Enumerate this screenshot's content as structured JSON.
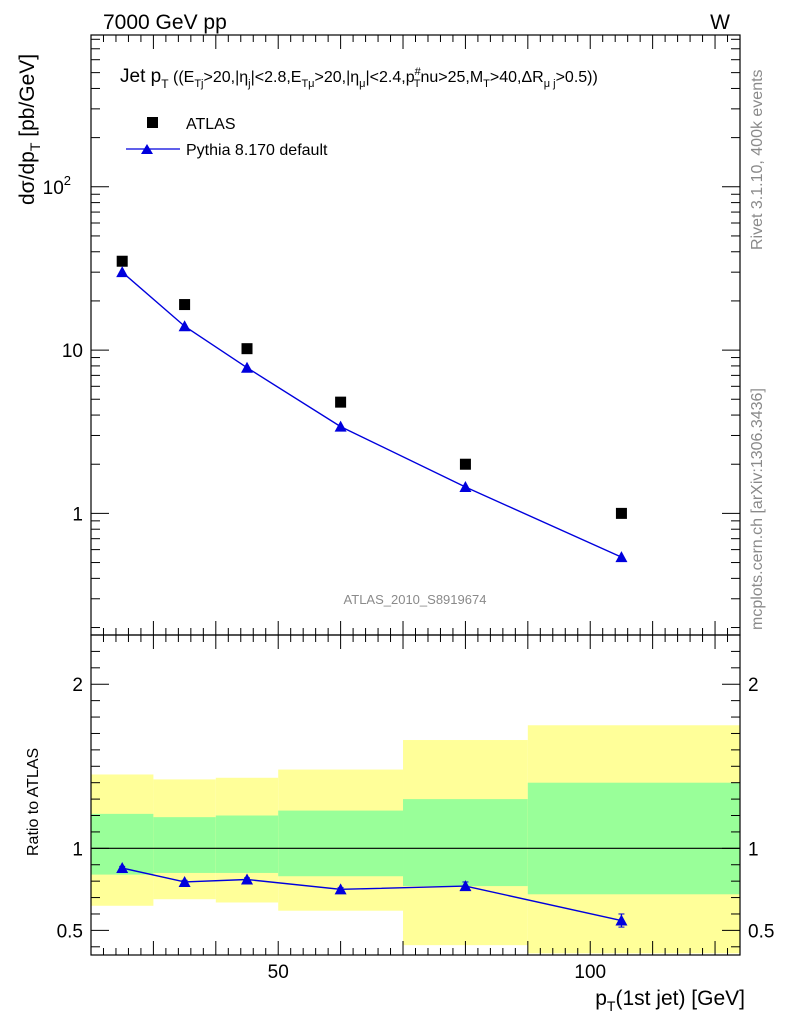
{
  "header": {
    "left": "7000 GeV pp",
    "right": "W"
  },
  "side_labels": {
    "rivet": "Rivet 3.1.10,  400k events",
    "mcplots": "mcplots.cern.ch [arXiv:1306.3436]"
  },
  "chart_data": [
    {
      "type": "scatter",
      "scale": "log",
      "title": "Jet pT ((ETj>20,|ηj|<2.8,ETμ>20,|ημ|<2.4,pT#nu>25,MT>40,ΔRμj>0.5))",
      "ylabel": "dσ/dpT [pb/GeV]",
      "xlim": [
        20,
        124
      ],
      "ylim": [
        0.18,
        850
      ],
      "y_ticks": [
        "1",
        "10",
        "10^2"
      ],
      "watermark": "ATLAS_2010_S8919674",
      "legend": {
        "position": "top-left",
        "entries": [
          "ATLAS",
          "Pythia 8.170 default"
        ]
      },
      "series": [
        {
          "name": "ATLAS",
          "marker": "square",
          "color": "#000000",
          "x": [
            25,
            35,
            45,
            60,
            80,
            105
          ],
          "values": [
            35,
            19,
            10.2,
            4.8,
            2.0,
            1.0
          ]
        },
        {
          "name": "Pythia 8.170 default",
          "marker": "triangle",
          "color": "#0000dd",
          "x": [
            25,
            35,
            45,
            60,
            80,
            105
          ],
          "values": [
            30,
            14,
            7.8,
            3.4,
            1.45,
            0.54
          ]
        }
      ]
    },
    {
      "type": "line",
      "ylabel": "Ratio to ATLAS",
      "xlabel": "pT(1st jet) [GeV]",
      "xlim": [
        20,
        124
      ],
      "ylim": [
        0.35,
        2.3
      ],
      "x_ticks": [
        "50",
        "100"
      ],
      "y_ticks": [
        "0.5",
        "1",
        "2"
      ],
      "reference_line": 1,
      "bins": [
        [
          20,
          30
        ],
        [
          30,
          40
        ],
        [
          40,
          50
        ],
        [
          50,
          70
        ],
        [
          70,
          90
        ],
        [
          90,
          124
        ]
      ],
      "band_inner": {
        "color": "#99ff99",
        "low": [
          0.84,
          0.85,
          0.85,
          0.83,
          0.77,
          0.72
        ],
        "high": [
          1.21,
          1.19,
          1.2,
          1.23,
          1.3,
          1.4
        ]
      },
      "band_outer": {
        "color": "#ffff99",
        "low": [
          0.65,
          0.69,
          0.67,
          0.62,
          0.41,
          0.36
        ],
        "high": [
          1.45,
          1.42,
          1.43,
          1.48,
          1.66,
          1.75
        ]
      },
      "series": [
        {
          "name": "Pythia 8.170 default",
          "color": "#0000dd",
          "x": [
            25,
            35,
            45,
            60,
            80,
            105
          ],
          "values": [
            0.88,
            0.795,
            0.81,
            0.75,
            0.77,
            0.56
          ],
          "errors": [
            0.01,
            0.01,
            0.01,
            0.01,
            0.025,
            0.04
          ]
        }
      ]
    }
  ]
}
